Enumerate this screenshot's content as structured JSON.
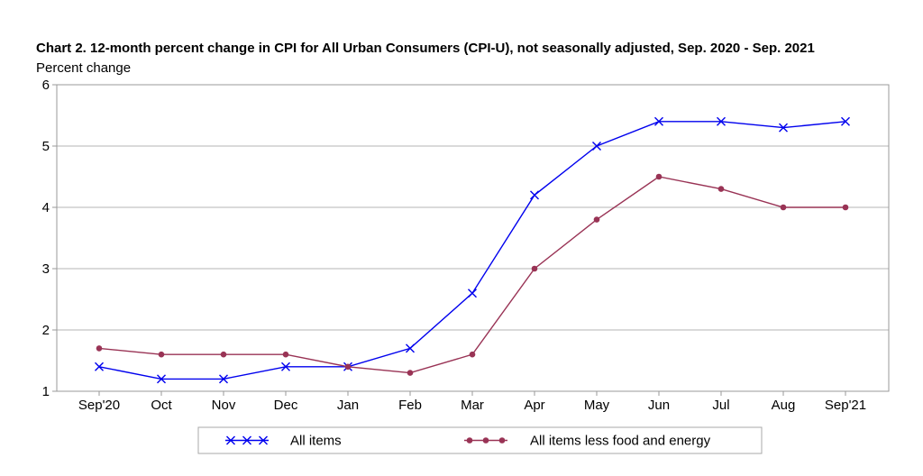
{
  "chart_data": {
    "type": "line",
    "title": "Chart 2. 12-month percent change in CPI for All Urban Consumers (CPI-U), not seasonally adjusted, Sep. 2020 - Sep. 2021",
    "ylabel": "Percent change",
    "xlabel": "",
    "categories": [
      "Sep'20",
      "Oct",
      "Nov",
      "Dec",
      "Jan",
      "Feb",
      "Mar",
      "Apr",
      "May",
      "Jun",
      "Jul",
      "Aug",
      "Sep'21"
    ],
    "ylim": [
      1,
      6
    ],
    "yticks": [
      1,
      2,
      3,
      4,
      5,
      6
    ],
    "grid": true,
    "legend_position": "bottom",
    "series": [
      {
        "name": "All items",
        "color": "#0000ee",
        "marker": "x",
        "values": [
          1.4,
          1.2,
          1.2,
          1.4,
          1.4,
          1.7,
          2.6,
          4.2,
          5.0,
          5.4,
          5.4,
          5.3,
          5.4
        ]
      },
      {
        "name": "All items less food and energy",
        "color": "#993355",
        "marker": "circle",
        "values": [
          1.7,
          1.6,
          1.6,
          1.6,
          1.4,
          1.3,
          1.6,
          3.0,
          3.8,
          4.5,
          4.3,
          4.0,
          4.0
        ]
      }
    ]
  }
}
